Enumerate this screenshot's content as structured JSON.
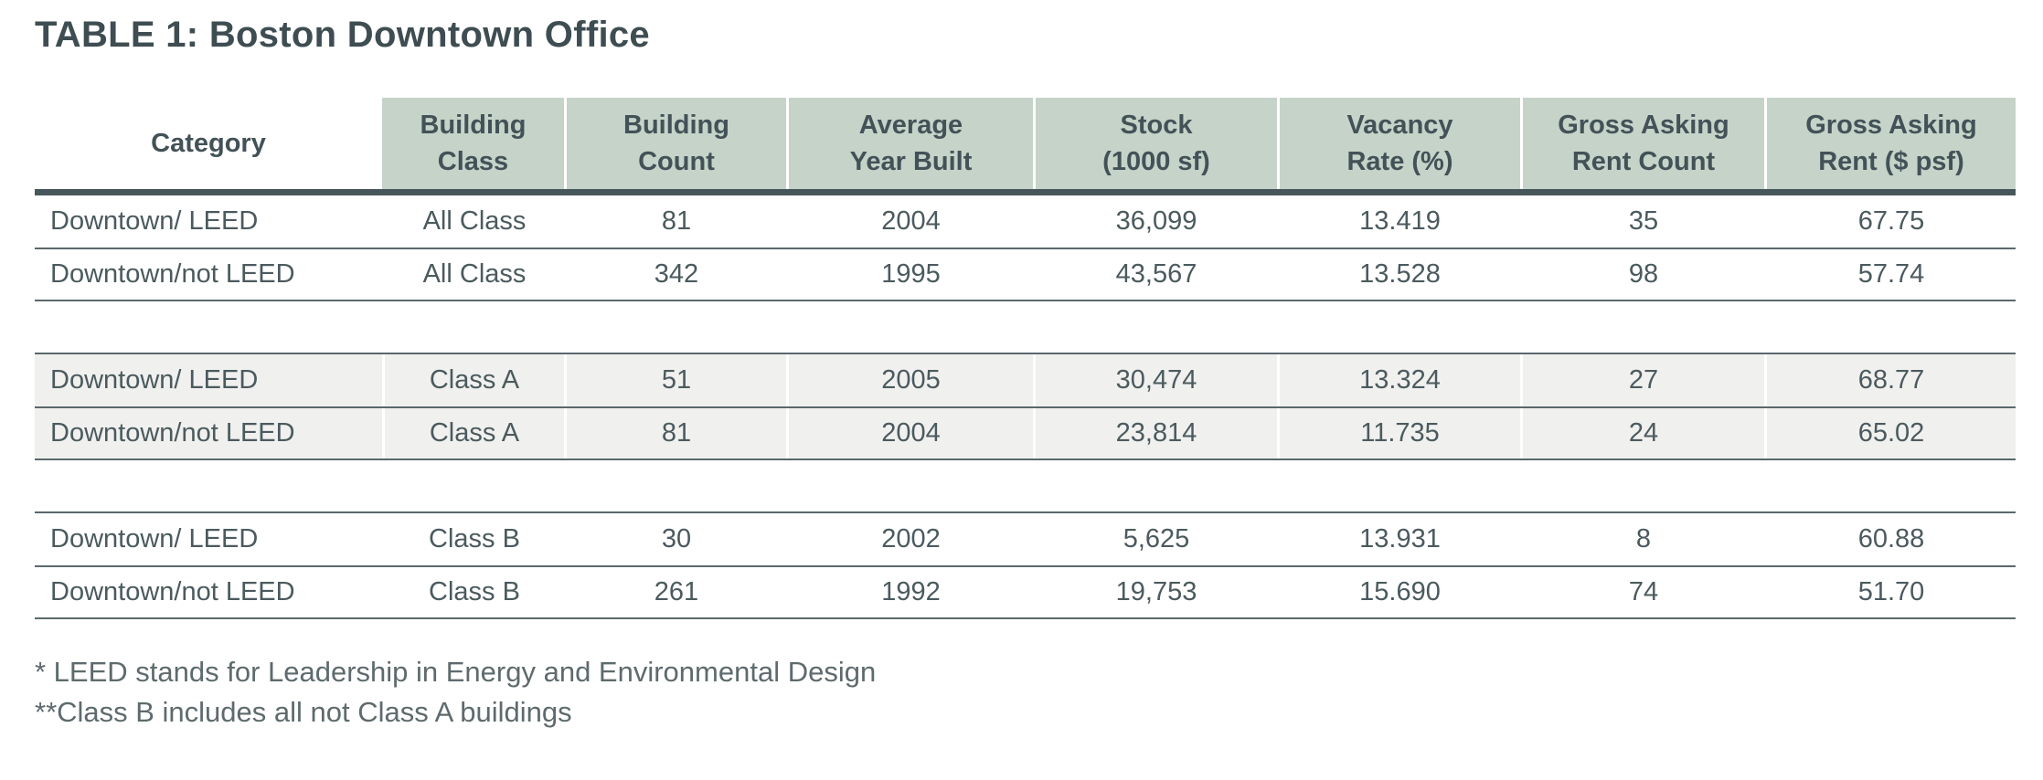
{
  "title": "TABLE 1: Boston Downtown Office",
  "colors": {
    "header_background": "#c5d3c9",
    "stripe_background": "#f0f0ee",
    "thick_rule": "#47565a",
    "thin_rule": "#5a686b",
    "title_text": "#3e4d52",
    "body_text": "#4b5a5e",
    "footnote_text": "#5e6a6d"
  },
  "table": {
    "headers": [
      "Category",
      "Building\nClass",
      "Building\nCount",
      "Average\nYear Built",
      "Stock\n(1000 sf)",
      "Vacancy\nRate (%)",
      "Gross Asking\nRent Count",
      "Gross Asking\nRent ($ psf)"
    ],
    "sections": [
      {
        "rows": [
          {
            "cells": [
              "Downtown/ LEED",
              "All Class",
              "81",
              "2004",
              "36,099",
              "13.419",
              "35",
              "67.75"
            ]
          },
          {
            "cells": [
              "Downtown/not LEED",
              "All Class",
              "342",
              "1995",
              "43,567",
              "13.528",
              "98",
              "57.74"
            ]
          }
        ]
      },
      {
        "rows": [
          {
            "cells": [
              "Downtown/ LEED",
              "Class A",
              "51",
              "2005",
              "30,474",
              "13.324",
              "27",
              "68.77"
            ]
          },
          {
            "cells": [
              "Downtown/not LEED",
              "Class A",
              "81",
              "2004",
              "23,814",
              "11.735",
              "24",
              "65.02"
            ]
          }
        ]
      },
      {
        "rows": [
          {
            "cells": [
              "Downtown/ LEED",
              "Class B",
              "30",
              "2002",
              "5,625",
              "13.931",
              "8",
              "60.88"
            ]
          },
          {
            "cells": [
              "Downtown/not LEED",
              "Class B",
              "261",
              "1992",
              "19,753",
              "15.690",
              "74",
              "51.70"
            ]
          }
        ]
      }
    ]
  },
  "footnotes": [
    "* LEED stands for Leadership in Energy and Environmental Design",
    "**Class B includes all not Class A buildings"
  ]
}
